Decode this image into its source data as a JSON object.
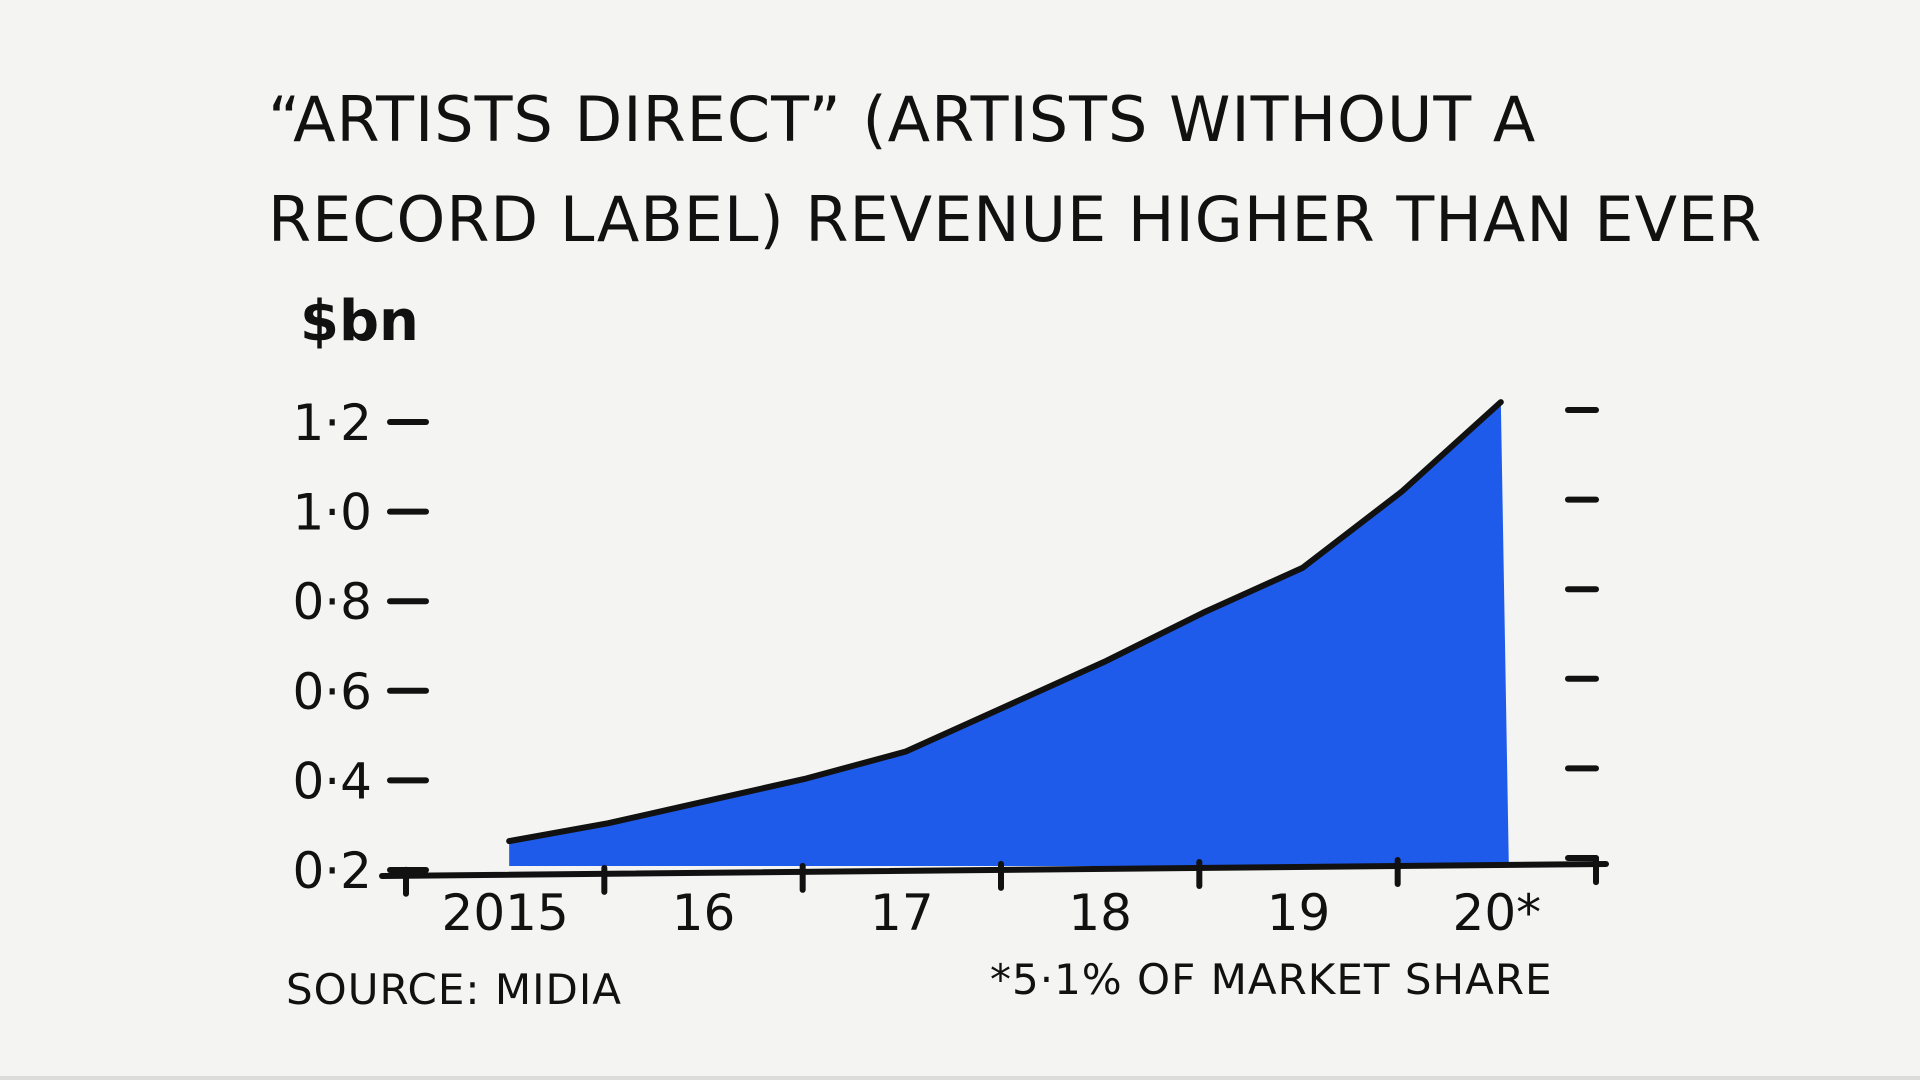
{
  "chart_data": {
    "type": "area",
    "title_lines": [
      "“ARTISTS DIRECT” (ARTISTS WITHOUT A",
      "RECORD LABEL) REVENUE HIGHER THAN EVER"
    ],
    "ylabel": "$bn",
    "xlabel": "",
    "x": [
      2015,
      2015.5,
      2016,
      2016.5,
      2017,
      2017.5,
      2018,
      2018.5,
      2019,
      2019.5,
      2020
    ],
    "x_ticks": [
      "2015",
      "16",
      "17",
      "18",
      "19",
      "20*"
    ],
    "y_ticks": [
      "0·2",
      "0·4",
      "0·6",
      "0·8",
      "1·0",
      "1·2"
    ],
    "y_tick_values": [
      0.2,
      0.4,
      0.6,
      0.8,
      1.0,
      1.2
    ],
    "ylim": [
      0.2,
      1.2
    ],
    "xlim": [
      2014.5,
      2020.5
    ],
    "series": [
      {
        "values": [
          0.26,
          0.3,
          0.35,
          0.4,
          0.46,
          0.56,
          0.66,
          0.77,
          0.87,
          1.04,
          1.24
        ],
        "color": "#1f5bea"
      }
    ],
    "grid": false,
    "legend": "none",
    "source": "SOURCE: MIDIA",
    "footnote": "*5·1% OF MARKET SHARE"
  }
}
